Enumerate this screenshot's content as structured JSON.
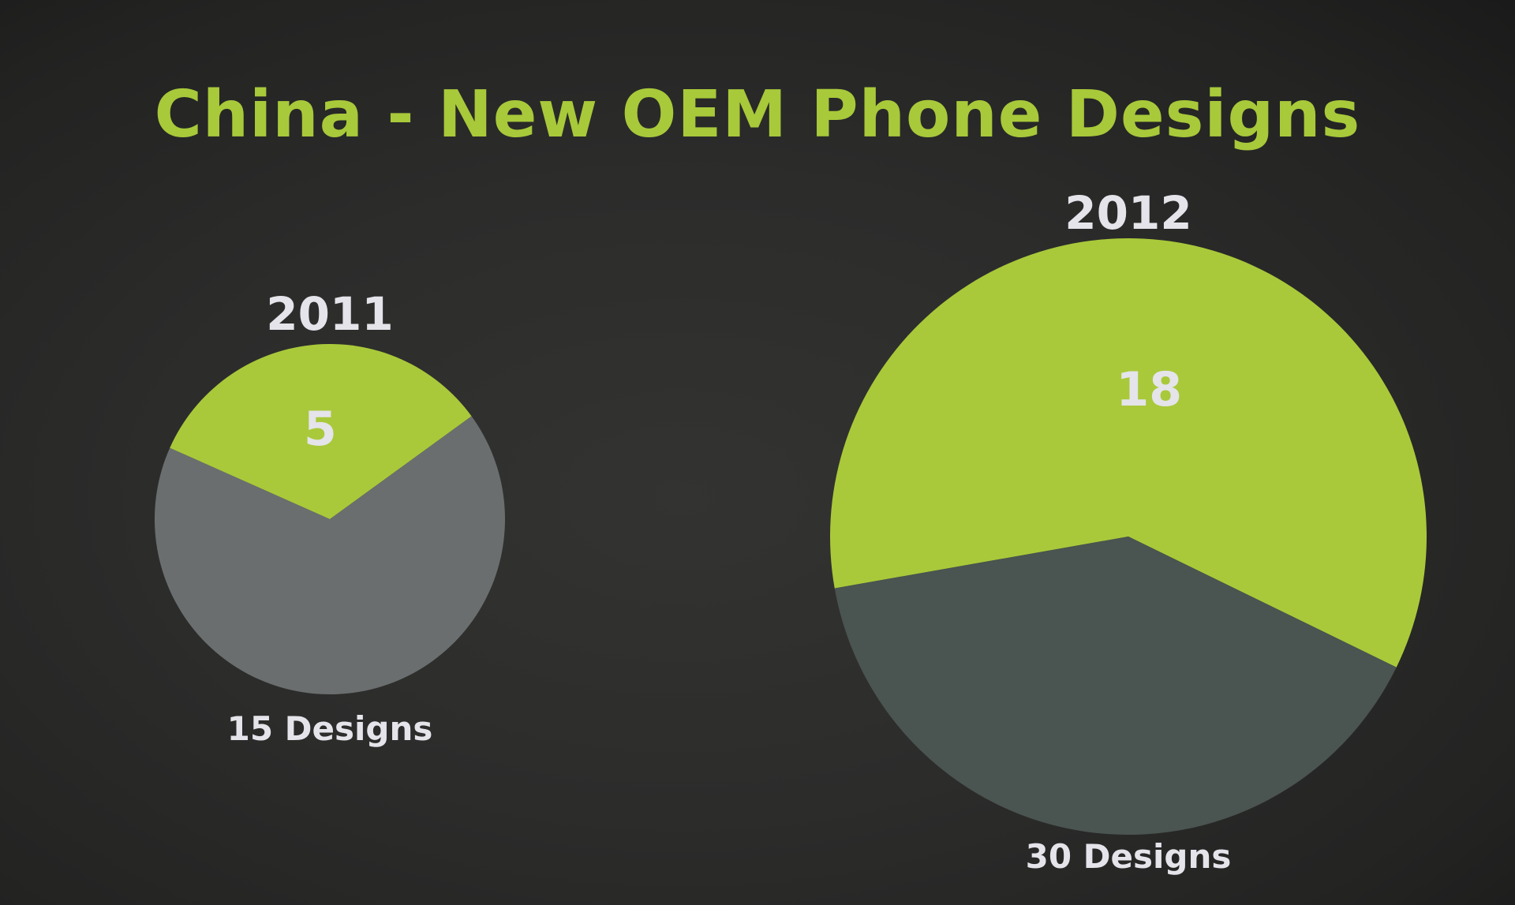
{
  "title": "China - New OEM Phone Designs",
  "colors": {
    "title": "#a8c93a",
    "highlight_slice": "#a9c93a",
    "rest_slice_2011": "#6a6e6f",
    "rest_slice_2012": "#4a5450",
    "text": "#e4e4ea"
  },
  "chart_data": [
    {
      "type": "pie",
      "label": "2011",
      "total": 15,
      "total_label": "15 Designs",
      "slices": [
        {
          "value": 5,
          "label": "5",
          "color": "#a9c93a"
        },
        {
          "value": 10,
          "label": "",
          "color": "#6a6e6f"
        }
      ]
    },
    {
      "type": "pie",
      "label": "2012",
      "total": 30,
      "total_label": "30 Designs",
      "slices": [
        {
          "value": 18,
          "label": "18",
          "color": "#a9c93a"
        },
        {
          "value": 12,
          "label": "",
          "color": "#4a5450"
        }
      ]
    }
  ]
}
